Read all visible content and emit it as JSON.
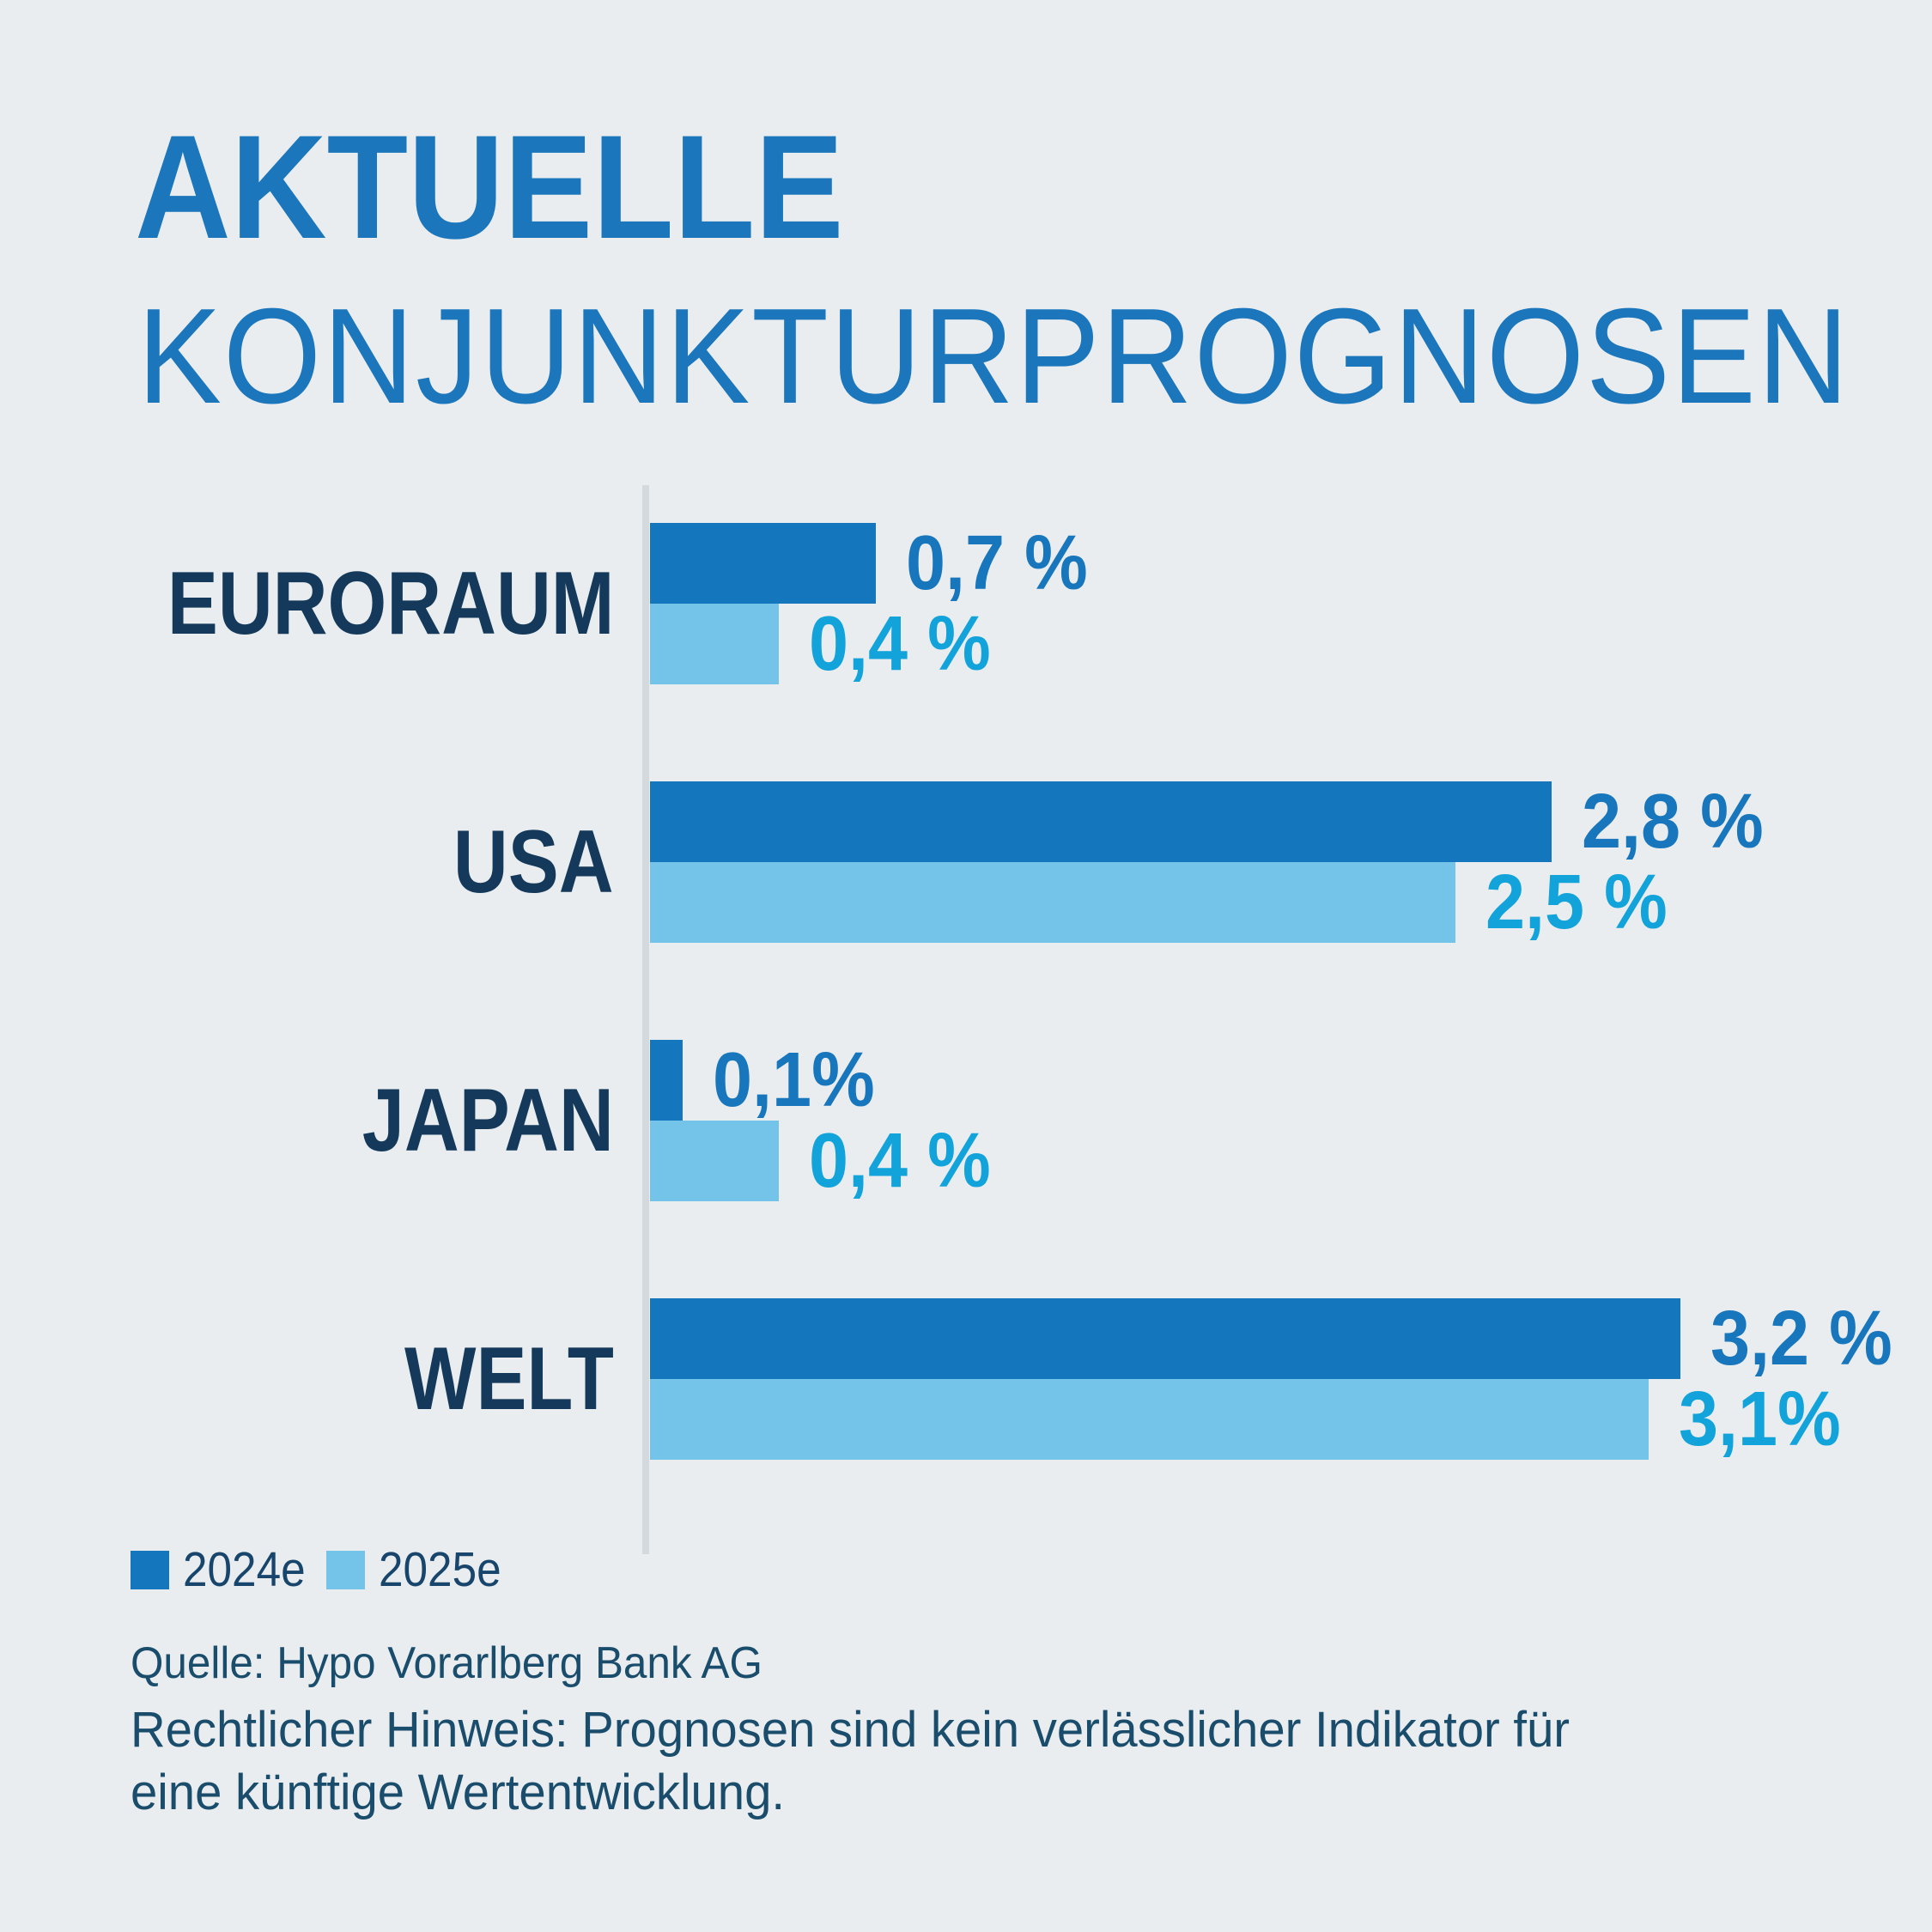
{
  "title": {
    "line1": "AKTUELLE",
    "line2": "KONJUNKTURPROGNOSEN"
  },
  "chart_data": {
    "type": "bar",
    "orientation": "horizontal",
    "title": "Aktuelle Konjunkturprognosen",
    "categories": [
      "EURORAUM",
      "USA",
      "JAPAN",
      "WELT"
    ],
    "series": [
      {
        "name": "2024e",
        "color": "#1477BE",
        "label_color": "#1776BC",
        "values": [
          0.7,
          2.8,
          0.1,
          3.2
        ],
        "labels": [
          "0,7 %",
          "2,8 %",
          "0,1%",
          "3,2 %"
        ]
      },
      {
        "name": "2025e",
        "color": "#74C3E9",
        "label_color": "#12A3DA",
        "values": [
          0.4,
          2.5,
          0.4,
          3.1
        ],
        "labels": [
          "0,4 %",
          "2,5 %",
          "0,4 %",
          "3,1%"
        ]
      }
    ],
    "xlim": [
      0,
      3.5
    ],
    "grid": false,
    "legend_position": "bottom-left",
    "value_labels_shown": true
  },
  "footer": {
    "source": "Quelle: Hypo Vorarlberg Bank AG",
    "legal_line1": "Rechtlicher Hinweis: Prognosen sind kein verlässlicher Indikator für",
    "legal_line2": "eine künftige Wertentwicklung."
  },
  "colors": {
    "background": "#E9EDF0",
    "axis_line": "#D4D9DE",
    "title_blue": "#1B76BC",
    "category_navy": "#14395A",
    "footer_navy": "#1A4C6B"
  }
}
